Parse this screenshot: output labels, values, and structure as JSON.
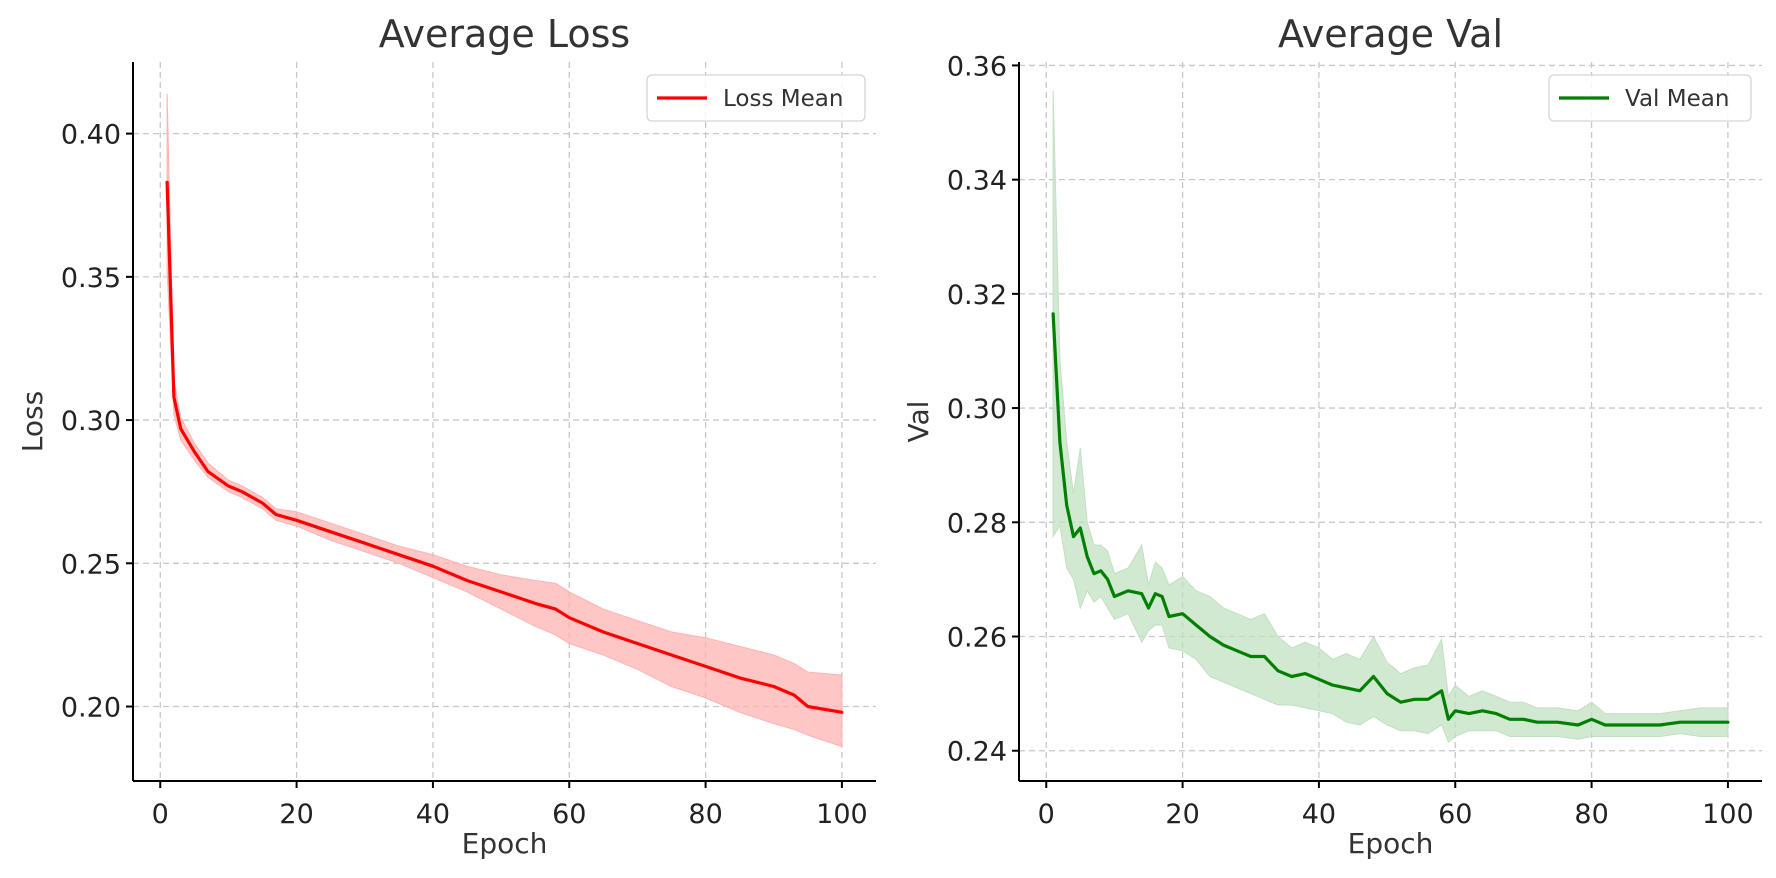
{
  "chart_data": [
    {
      "type": "line",
      "title": "Average Loss",
      "xlabel": "Epoch",
      "ylabel": "Loss",
      "xlim": [
        -4,
        105
      ],
      "ylim": [
        0.174,
        0.425
      ],
      "xticks": [
        0,
        20,
        40,
        60,
        80,
        100
      ],
      "yticks": [
        0.2,
        0.25,
        0.3,
        0.35,
        0.4
      ],
      "ytick_decimals": 2,
      "grid": true,
      "legend": "top-right",
      "colors": {
        "line": "#ff0000",
        "band": "#ffb3b3"
      },
      "series": [
        {
          "name": "Loss Mean",
          "x": [
            1,
            2,
            3,
            5,
            7,
            10,
            12,
            15,
            17,
            20,
            25,
            30,
            35,
            40,
            45,
            50,
            55,
            58,
            60,
            65,
            70,
            75,
            80,
            85,
            90,
            93,
            95,
            100
          ],
          "y": [
            0.383,
            0.308,
            0.297,
            0.289,
            0.282,
            0.277,
            0.275,
            0.271,
            0.267,
            0.265,
            0.261,
            0.257,
            0.253,
            0.249,
            0.244,
            0.24,
            0.236,
            0.234,
            0.231,
            0.226,
            0.222,
            0.218,
            0.214,
            0.21,
            0.207,
            0.204,
            0.2,
            0.198
          ],
          "lower": [
            0.352,
            0.302,
            0.293,
            0.286,
            0.28,
            0.275,
            0.273,
            0.269,
            0.265,
            0.263,
            0.258,
            0.254,
            0.25,
            0.245,
            0.24,
            0.234,
            0.228,
            0.225,
            0.222,
            0.218,
            0.213,
            0.207,
            0.203,
            0.198,
            0.194,
            0.192,
            0.19,
            0.186
          ],
          "upper": [
            0.414,
            0.314,
            0.301,
            0.292,
            0.285,
            0.279,
            0.277,
            0.273,
            0.269,
            0.268,
            0.264,
            0.26,
            0.256,
            0.253,
            0.249,
            0.246,
            0.244,
            0.243,
            0.24,
            0.234,
            0.23,
            0.226,
            0.224,
            0.221,
            0.218,
            0.215,
            0.212,
            0.211
          ]
        }
      ]
    },
    {
      "type": "line",
      "title": "Average Val",
      "xlabel": "Epoch",
      "ylabel": "Val",
      "xlim": [
        -4,
        105
      ],
      "ylim": [
        0.2347,
        0.3606
      ],
      "xticks": [
        0,
        20,
        40,
        60,
        80,
        100
      ],
      "yticks": [
        0.24,
        0.26,
        0.28,
        0.3,
        0.32,
        0.34,
        0.36
      ],
      "ytick_decimals": 2,
      "grid": true,
      "legend": "top-right",
      "colors": {
        "line": "#008000",
        "band": "#c2e0c2"
      },
      "series": [
        {
          "name": "Val Mean",
          "x": [
            1,
            2,
            3,
            4,
            5,
            6,
            7,
            8,
            9,
            10,
            12,
            14,
            15,
            16,
            17,
            18,
            20,
            22,
            24,
            26,
            28,
            30,
            32,
            34,
            36,
            38,
            40,
            42,
            44,
            46,
            48,
            50,
            52,
            54,
            56,
            58,
            59,
            60,
            62,
            64,
            66,
            68,
            70,
            72,
            75,
            78,
            80,
            82,
            85,
            88,
            90,
            93,
            96,
            100
          ],
          "y": [
            0.3165,
            0.294,
            0.283,
            0.2775,
            0.279,
            0.274,
            0.271,
            0.2715,
            0.27,
            0.267,
            0.268,
            0.2675,
            0.265,
            0.2675,
            0.267,
            0.2635,
            0.264,
            0.262,
            0.26,
            0.2585,
            0.2575,
            0.2565,
            0.2565,
            0.254,
            0.253,
            0.2535,
            0.2525,
            0.2515,
            0.251,
            0.2505,
            0.253,
            0.25,
            0.2485,
            0.249,
            0.249,
            0.2505,
            0.2455,
            0.247,
            0.2465,
            0.247,
            0.2465,
            0.2455,
            0.2455,
            0.245,
            0.245,
            0.2445,
            0.2455,
            0.2445,
            0.2445,
            0.2445,
            0.2445,
            0.245,
            0.245,
            0.245
          ],
          "lower": [
            0.2775,
            0.2795,
            0.272,
            0.27,
            0.265,
            0.268,
            0.266,
            0.267,
            0.265,
            0.263,
            0.264,
            0.259,
            0.261,
            0.262,
            0.262,
            0.258,
            0.2575,
            0.256,
            0.253,
            0.252,
            0.251,
            0.25,
            0.249,
            0.248,
            0.248,
            0.2475,
            0.247,
            0.2465,
            0.245,
            0.2445,
            0.246,
            0.2445,
            0.2435,
            0.2435,
            0.243,
            0.2445,
            0.2415,
            0.2425,
            0.2435,
            0.2435,
            0.2435,
            0.2425,
            0.2425,
            0.2425,
            0.2425,
            0.242,
            0.2425,
            0.2425,
            0.2425,
            0.2425,
            0.2425,
            0.243,
            0.2425,
            0.2425
          ],
          "upper": [
            0.3555,
            0.3085,
            0.294,
            0.285,
            0.293,
            0.28,
            0.276,
            0.276,
            0.275,
            0.271,
            0.272,
            0.276,
            0.269,
            0.273,
            0.272,
            0.269,
            0.2705,
            0.268,
            0.267,
            0.265,
            0.264,
            0.263,
            0.264,
            0.26,
            0.258,
            0.259,
            0.258,
            0.256,
            0.257,
            0.256,
            0.26,
            0.2555,
            0.2535,
            0.2545,
            0.255,
            0.2595,
            0.2495,
            0.2515,
            0.2495,
            0.2505,
            0.2495,
            0.2485,
            0.2485,
            0.2475,
            0.2475,
            0.247,
            0.2485,
            0.2465,
            0.2465,
            0.2465,
            0.2465,
            0.247,
            0.2475,
            0.2475
          ]
        }
      ]
    }
  ]
}
